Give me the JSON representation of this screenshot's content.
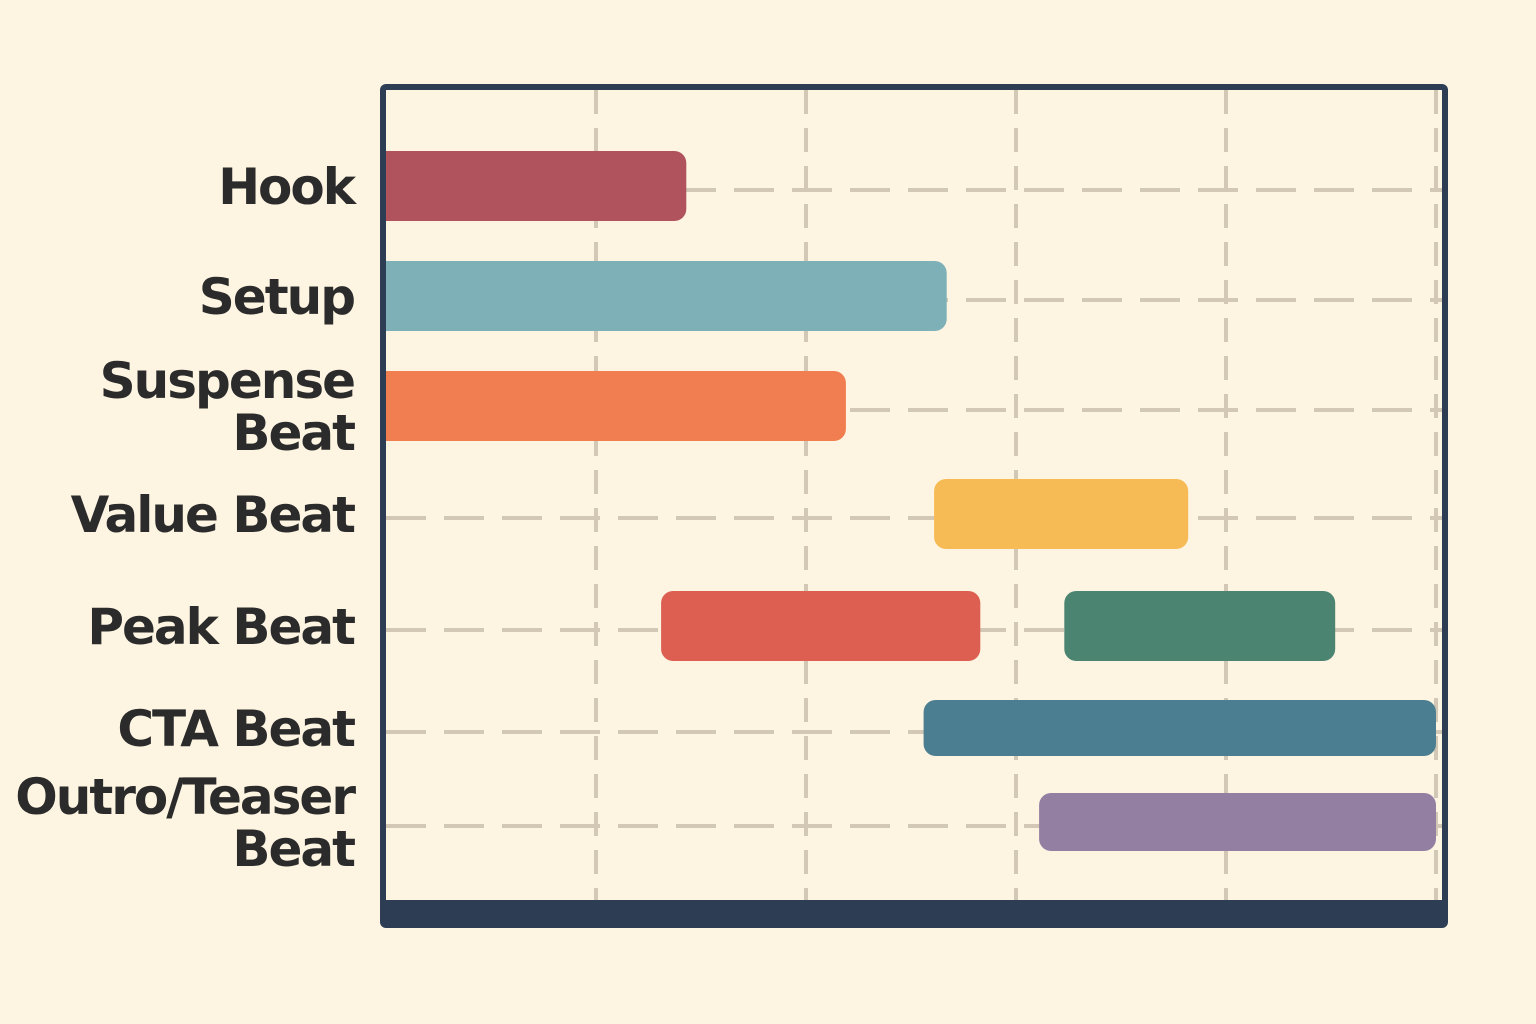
{
  "chart_data": {
    "type": "bar",
    "subtype": "gantt",
    "title": "",
    "xlabel": "",
    "ylabel": "",
    "xlim": [
      0,
      5.1
    ],
    "grid": true,
    "grid_style": "dashed",
    "legend": "none",
    "categories": [
      [
        "Hook"
      ],
      [
        "Setup"
      ],
      [
        "Suspense",
        "Beat"
      ],
      [
        "Value Beat"
      ],
      [
        "Peak Beat"
      ],
      [
        "CTA Beat"
      ],
      [
        "Outro/Teaser",
        "Beat"
      ]
    ],
    "tasks": [
      {
        "row": 0,
        "start": 0.0,
        "end": 1.43,
        "color": "#b0535c"
      },
      {
        "row": 1,
        "start": 0.0,
        "end": 2.67,
        "color": "#7eb0b8"
      },
      {
        "row": 2,
        "start": 0.0,
        "end": 2.19,
        "color": "#f07e50"
      },
      {
        "row": 3,
        "start": 2.61,
        "end": 3.82,
        "color": "#f7bb55"
      },
      {
        "row": 4,
        "start": 1.31,
        "end": 2.83,
        "color": "#dc5f52"
      },
      {
        "row": 4,
        "start": 3.23,
        "end": 4.52,
        "color": "#4c8472"
      },
      {
        "row": 5,
        "start": 2.56,
        "end": 5.0,
        "color": "#4a7e90"
      },
      {
        "row": 6,
        "start": 3.11,
        "end": 5.0,
        "color": "#937fa2"
      }
    ],
    "colors": {
      "frame": "#2d3e54",
      "grid": "#d3c8b5",
      "background": "#fdf4e2",
      "label": "#2b2b2b"
    }
  }
}
